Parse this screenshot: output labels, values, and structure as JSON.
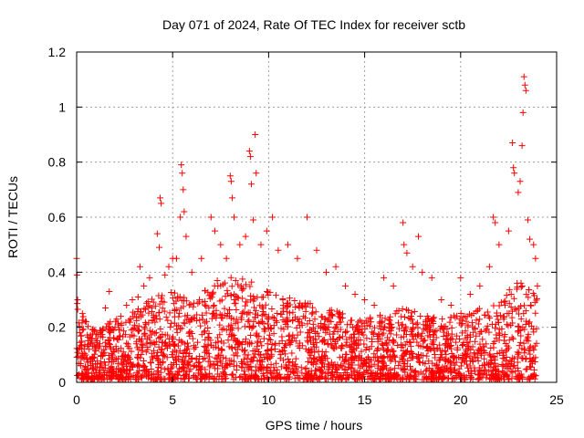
{
  "chart_data": {
    "type": "scatter",
    "title": "Day 071 of 2024, Rate Of TEC Index for receiver sctb",
    "xlabel": "GPS time / hours",
    "ylabel": "ROTI / TECUs",
    "xlim": [
      0,
      25
    ],
    "ylim": [
      0,
      1.2
    ],
    "x_ticks": [
      0,
      5,
      10,
      15,
      20,
      25
    ],
    "x_tick_labels": [
      "0",
      "5",
      "10",
      "15",
      "20",
      "25"
    ],
    "y_ticks": [
      0,
      0.2,
      0.4,
      0.6,
      0.8,
      1.0,
      1.2
    ],
    "y_tick_labels": [
      "0",
      "0.2",
      "0.4",
      "0.6",
      "0.8",
      "1",
      "1.2"
    ],
    "grid": true,
    "marker": "plus",
    "color": "#ff0000",
    "series": [
      {
        "name": "ROTI",
        "points": [
          [
            0.0,
            0.45
          ],
          [
            0.02,
            0.39
          ],
          [
            0.05,
            0.3
          ],
          [
            0.1,
            0.12
          ],
          [
            0.3,
            0.25
          ],
          [
            0.5,
            0.22
          ],
          [
            0.8,
            0.15
          ],
          [
            1.0,
            0.12
          ],
          [
            1.5,
            0.27
          ],
          [
            1.7,
            0.33
          ],
          [
            2.0,
            0.2
          ],
          [
            2.3,
            0.24
          ],
          [
            2.6,
            0.28
          ],
          [
            2.9,
            0.3
          ],
          [
            3.2,
            0.31
          ],
          [
            3.3,
            0.42
          ],
          [
            3.5,
            0.35
          ],
          [
            3.8,
            0.38
          ],
          [
            4.2,
            0.54
          ],
          [
            4.3,
            0.49
          ],
          [
            4.35,
            0.67
          ],
          [
            4.4,
            0.65
          ],
          [
            4.6,
            0.39
          ],
          [
            4.8,
            0.42
          ],
          [
            5.0,
            0.45
          ],
          [
            5.2,
            0.45
          ],
          [
            5.4,
            0.6
          ],
          [
            5.45,
            0.79
          ],
          [
            5.5,
            0.76
          ],
          [
            5.55,
            0.7
          ],
          [
            5.6,
            0.62
          ],
          [
            5.7,
            0.53
          ],
          [
            6.0,
            0.4
          ],
          [
            6.5,
            0.45
          ],
          [
            7.0,
            0.6
          ],
          [
            7.2,
            0.55
          ],
          [
            7.5,
            0.5
          ],
          [
            7.8,
            0.45
          ],
          [
            8.0,
            0.75
          ],
          [
            8.05,
            0.73
          ],
          [
            8.1,
            0.67
          ],
          [
            8.2,
            0.6
          ],
          [
            8.5,
            0.5
          ],
          [
            8.8,
            0.53
          ],
          [
            9.0,
            0.84
          ],
          [
            9.05,
            0.82
          ],
          [
            9.1,
            0.72
          ],
          [
            9.2,
            0.59
          ],
          [
            9.3,
            0.9
          ],
          [
            9.35,
            0.76
          ],
          [
            9.6,
            0.5
          ],
          [
            9.9,
            0.55
          ],
          [
            10.2,
            0.6
          ],
          [
            10.5,
            0.48
          ],
          [
            11.0,
            0.5
          ],
          [
            11.5,
            0.45
          ],
          [
            12.0,
            0.6
          ],
          [
            12.5,
            0.48
          ],
          [
            13.0,
            0.4
          ],
          [
            13.5,
            0.42
          ],
          [
            14.0,
            0.35
          ],
          [
            14.5,
            0.32
          ],
          [
            15.0,
            0.3
          ],
          [
            15.5,
            0.28
          ],
          [
            16.0,
            0.38
          ],
          [
            16.5,
            0.35
          ],
          [
            17.0,
            0.58
          ],
          [
            17.05,
            0.5
          ],
          [
            17.2,
            0.47
          ],
          [
            17.5,
            0.42
          ],
          [
            17.8,
            0.53
          ],
          [
            18.0,
            0.4
          ],
          [
            18.5,
            0.38
          ],
          [
            19.0,
            0.3
          ],
          [
            19.5,
            0.28
          ],
          [
            20.0,
            0.38
          ],
          [
            20.5,
            0.32
          ],
          [
            21.0,
            0.35
          ],
          [
            21.5,
            0.42
          ],
          [
            21.7,
            0.6
          ],
          [
            21.8,
            0.58
          ],
          [
            22.0,
            0.5
          ],
          [
            22.5,
            0.55
          ],
          [
            22.7,
            0.87
          ],
          [
            22.75,
            0.78
          ],
          [
            22.8,
            0.76
          ],
          [
            23.0,
            0.69
          ],
          [
            23.1,
            0.73
          ],
          [
            23.2,
            0.86
          ],
          [
            23.25,
            0.98
          ],
          [
            23.3,
            1.11
          ],
          [
            23.35,
            1.08
          ],
          [
            23.4,
            1.06
          ],
          [
            23.5,
            0.59
          ],
          [
            23.6,
            0.52
          ],
          [
            23.8,
            0.5
          ],
          [
            23.9,
            0.45
          ],
          [
            24.0,
            0.35
          ]
        ],
        "baseline_profile": [
          [
            0.0,
            0.3
          ],
          [
            0.5,
            0.22
          ],
          [
            1.0,
            0.18
          ],
          [
            2.0,
            0.22
          ],
          [
            3.0,
            0.25
          ],
          [
            4.0,
            0.3
          ],
          [
            5.0,
            0.32
          ],
          [
            6.0,
            0.3
          ],
          [
            7.0,
            0.35
          ],
          [
            8.0,
            0.38
          ],
          [
            9.0,
            0.36
          ],
          [
            10.0,
            0.32
          ],
          [
            11.0,
            0.3
          ],
          [
            12.0,
            0.28
          ],
          [
            13.0,
            0.26
          ],
          [
            14.0,
            0.24
          ],
          [
            15.0,
            0.22
          ],
          [
            16.0,
            0.24
          ],
          [
            17.0,
            0.26
          ],
          [
            18.0,
            0.24
          ],
          [
            19.0,
            0.22
          ],
          [
            20.0,
            0.24
          ],
          [
            21.0,
            0.26
          ],
          [
            22.0,
            0.3
          ],
          [
            23.0,
            0.36
          ],
          [
            24.0,
            0.3
          ]
        ]
      }
    ]
  }
}
